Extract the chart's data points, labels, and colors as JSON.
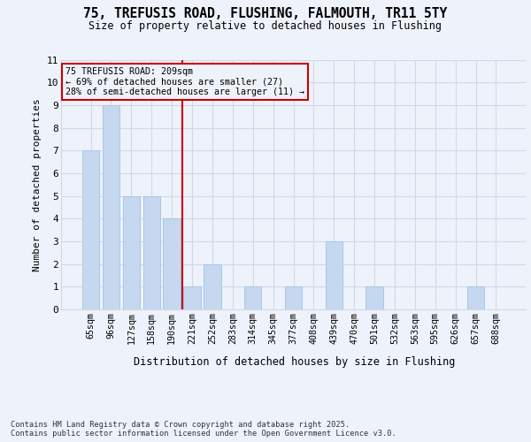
{
  "title_line1": "75, TREFUSIS ROAD, FLUSHING, FALMOUTH, TR11 5TY",
  "title_line2": "Size of property relative to detached houses in Flushing",
  "xlabel": "Distribution of detached houses by size in Flushing",
  "ylabel": "Number of detached properties",
  "categories": [
    "65sqm",
    "96sqm",
    "127sqm",
    "158sqm",
    "190sqm",
    "221sqm",
    "252sqm",
    "283sqm",
    "314sqm",
    "345sqm",
    "377sqm",
    "408sqm",
    "439sqm",
    "470sqm",
    "501sqm",
    "532sqm",
    "563sqm",
    "595sqm",
    "626sqm",
    "657sqm",
    "688sqm"
  ],
  "values": [
    7,
    9,
    5,
    5,
    4,
    1,
    2,
    0,
    1,
    0,
    1,
    0,
    3,
    0,
    1,
    0,
    0,
    0,
    0,
    1,
    0
  ],
  "bar_color": "#c5d8f0",
  "bar_edge_color": "#a8c8e8",
  "grid_color": "#d0d8e8",
  "annotation_box_color": "#cc0000",
  "annotation_text": "75 TREFUSIS ROAD: 209sqm\n← 69% of detached houses are smaller (27)\n28% of semi-detached houses are larger (11) →",
  "vline_x": 4.5,
  "vline_color": "#cc0000",
  "ylim_max": 11,
  "yticks": [
    0,
    1,
    2,
    3,
    4,
    5,
    6,
    7,
    8,
    9,
    10,
    11
  ],
  "footnote": "Contains HM Land Registry data © Crown copyright and database right 2025.\nContains public sector information licensed under the Open Government Licence v3.0.",
  "background_color": "#eef2fa"
}
